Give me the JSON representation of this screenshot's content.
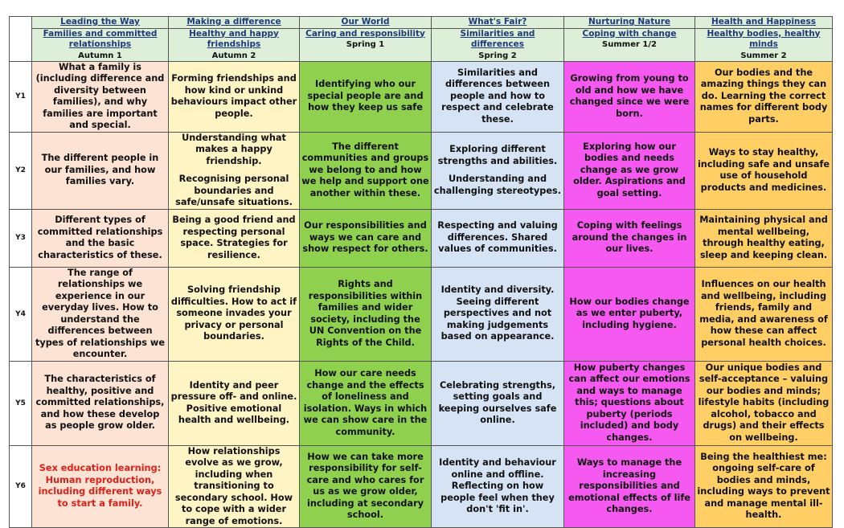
{
  "headers": [
    {
      "theme": "Leading the Way",
      "topic": "Families and committed relationships",
      "term": "Autumn 1"
    },
    {
      "theme": "Making a difference",
      "topic": "Healthy and happy friendships",
      "term": "Autumn 2"
    },
    {
      "theme": "Our World",
      "topic": "Caring and responsibility",
      "term": "Spring 1"
    },
    {
      "theme": "What's Fair?",
      "topic": "Similarities and differences",
      "term": "Spring 2"
    },
    {
      "theme": "Nurturing Nature",
      "topic": "Coping with change",
      "term": "Summer 1/2"
    },
    {
      "theme": "Health and Happiness",
      "topic": "Healthy bodies, healthy minds",
      "term": "Summer 2"
    }
  ],
  "years": [
    {
      "label": "Y1",
      "cells": [
        [
          "What a family is (including difference and diversity between families), and why families are important and special."
        ],
        [
          "Forming friendships and how kind or unkind behaviours impact other people."
        ],
        [
          "Identifying who our special people are and how they keep us safe"
        ],
        [
          "Similarities and differences between people and how to respect and celebrate these."
        ],
        [
          "Growing from young to old and how we have changed since we were born."
        ],
        [
          "Our bodies and the amazing things they can do. Learning the correct names for different body parts."
        ]
      ]
    },
    {
      "label": "Y2",
      "cells": [
        [
          "The different people in our families, and how families vary."
        ],
        [
          "Understanding what makes a happy friendship.",
          "Recognising personal boundaries and safe/unsafe situations."
        ],
        [
          "The different communities and groups we belong to and how we help and support one another within these."
        ],
        [
          "Exploring different strengths and abilities.",
          "Understanding and challenging stereotypes."
        ],
        [
          "Exploring how our bodies and needs change as we grow older. Aspirations and goal setting."
        ],
        [
          "Ways to stay healthy, including safe and unsafe use of household products and medicines."
        ]
      ]
    },
    {
      "label": "Y3",
      "cells": [
        [
          "Different types of committed relationships and the basic characteristics of these."
        ],
        [
          "Being a good friend and respecting personal space. Strategies for resilience."
        ],
        [
          "Our responsibilities and ways we can care and show respect for others."
        ],
        [
          "Respecting and valuing differences. Shared values of communities."
        ],
        [
          "Coping with feelings around the changes in our lives."
        ],
        [
          "Maintaining physical and mental wellbeing, through healthy eating, sleep and keeping clean."
        ]
      ]
    },
    {
      "label": "Y4",
      "cells": [
        [
          "The range of relationships we experience in our everyday lives. How to understand the differences between types of relationships we encounter."
        ],
        [
          "Solving friendship difficulties. How to act if someone invades your privacy or personal boundaries."
        ],
        [
          "Rights and responsibilities within families and wider society, including the UN Convention on the Rights of the Child."
        ],
        [
          "Identity and diversity. Seeing different perspectives and not making judgements based on appearance."
        ],
        [
          "How our bodies change as we enter puberty, including hygiene."
        ],
        [
          "Influences on our health and wellbeing, including friends, family and media, and awareness of how these can affect personal health choices."
        ]
      ]
    },
    {
      "label": "Y5",
      "cells": [
        [
          "The characteristics of healthy, positive and committed relationships, and how these develop as people grow older."
        ],
        [
          "Identity and peer pressure off- and online. Positive emotional health and wellbeing."
        ],
        [
          "How our care needs change and the effects of loneliness and isolation. Ways in which we can show care in the community."
        ],
        [
          "Celebrating strengths, setting goals and keeping ourselves safe online."
        ],
        [
          "How puberty changes can affect our emotions and ways to manage this; questions about puberty (periods included) and body changes."
        ],
        [
          "Our unique bodies and self-acceptance – valuing our bodies and minds; lifestyle habits (including alcohol, tobacco and drugs) and their effects on wellbeing."
        ]
      ]
    },
    {
      "label": "Y6",
      "cells": [
        [
          "Sex education learning: Human reproduction, including different ways to start a family."
        ],
        [
          "How relationships evolve as we grow, including when transitioning to secondary school. How to cope with a wider range of emotions."
        ],
        [
          "How we can take more responsibility for self-care and who cares for us as we grow older, including at secondary school."
        ],
        [
          "Identity and behaviour online and offline. Reflecting on how people feel when they don't 'fit in'."
        ],
        [
          "Ways to manage the increasing responsibilities and emotional effects of life changes."
        ],
        [
          "Being the healthiest me: ongoing self-care of bodies and minds, including ways to prevent and manage mental ill-health."
        ]
      ]
    }
  ],
  "colors": {
    "header_bg": "#ddefd8",
    "columns": [
      "#fce3d4",
      "#fff4c4",
      "#8fd14f",
      "#d6e3f5",
      "#f559f0",
      "#ffcf66"
    ],
    "emphasis_text": "#e0201a"
  }
}
